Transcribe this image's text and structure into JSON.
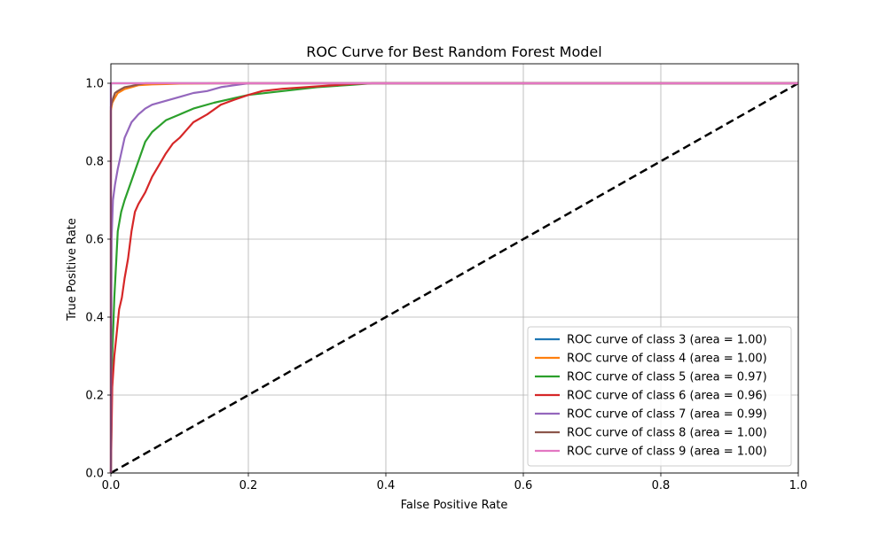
{
  "chart_data": {
    "type": "line",
    "title": "ROC Curve for Best Random Forest Model",
    "xlabel": "False Positive Rate",
    "ylabel": "True Positive Rate",
    "xlim": [
      0,
      1
    ],
    "ylim": [
      0,
      1.05
    ],
    "xticks": [
      "0.0",
      "0.2",
      "0.4",
      "0.6",
      "0.8",
      "1.0"
    ],
    "yticks": [
      "0.0",
      "0.2",
      "0.4",
      "0.6",
      "0.8",
      "1.0"
    ],
    "grid": true,
    "legend_position": "lower-right",
    "diagonal": {
      "x": [
        0,
        1
      ],
      "y": [
        0,
        1
      ],
      "color": "#000000",
      "style": "dashed"
    },
    "series": [
      {
        "name": "ROC curve of class 3 (area = 1.00)",
        "color": "#1f77b4",
        "x": [
          0,
          0,
          1
        ],
        "y": [
          0,
          1.0,
          1.0
        ]
      },
      {
        "name": "ROC curve of class 4 (area = 1.00)",
        "color": "#ff7f0e",
        "x": [
          0,
          0,
          0.002,
          0.005,
          0.01,
          0.02,
          0.03,
          0.04,
          0.06,
          0.08,
          0.1,
          0.15,
          0.2,
          1
        ],
        "y": [
          0,
          0.93,
          0.95,
          0.96,
          0.975,
          0.985,
          0.99,
          0.995,
          0.997,
          0.998,
          0.999,
          1.0,
          1.0,
          1.0
        ]
      },
      {
        "name": "ROC curve of class 5 (area = 0.97)",
        "color": "#2ca02c",
        "x": [
          0,
          0.002,
          0.005,
          0.008,
          0.01,
          0.015,
          0.02,
          0.03,
          0.04,
          0.05,
          0.06,
          0.07,
          0.08,
          0.1,
          0.12,
          0.15,
          0.18,
          0.2,
          0.25,
          0.3,
          0.35,
          0.38,
          1
        ],
        "y": [
          0,
          0.3,
          0.45,
          0.55,
          0.62,
          0.67,
          0.7,
          0.75,
          0.8,
          0.85,
          0.875,
          0.89,
          0.905,
          0.92,
          0.935,
          0.95,
          0.962,
          0.97,
          0.98,
          0.99,
          0.996,
          1.0,
          1.0
        ]
      },
      {
        "name": "ROC curve of class 6 (area = 0.96)",
        "color": "#d62728",
        "x": [
          0,
          0.002,
          0.005,
          0.008,
          0.012,
          0.016,
          0.02,
          0.025,
          0.03,
          0.035,
          0.04,
          0.05,
          0.06,
          0.07,
          0.08,
          0.09,
          0.1,
          0.11,
          0.12,
          0.14,
          0.16,
          0.18,
          0.2,
          0.22,
          0.25,
          0.3,
          0.35,
          0.38,
          1
        ],
        "y": [
          0,
          0.22,
          0.3,
          0.35,
          0.42,
          0.45,
          0.5,
          0.55,
          0.62,
          0.67,
          0.69,
          0.72,
          0.76,
          0.79,
          0.82,
          0.845,
          0.86,
          0.88,
          0.9,
          0.92,
          0.945,
          0.958,
          0.97,
          0.98,
          0.986,
          0.992,
          0.998,
          1.0,
          1.0
        ]
      },
      {
        "name": "ROC curve of class 7 (area = 0.99)",
        "color": "#9467bd",
        "x": [
          0,
          0.001,
          0.003,
          0.006,
          0.01,
          0.015,
          0.02,
          0.025,
          0.03,
          0.04,
          0.05,
          0.06,
          0.08,
          0.1,
          0.12,
          0.14,
          0.16,
          0.18,
          0.2,
          0.25,
          1
        ],
        "y": [
          0,
          0.6,
          0.7,
          0.74,
          0.78,
          0.82,
          0.86,
          0.88,
          0.9,
          0.92,
          0.935,
          0.945,
          0.955,
          0.965,
          0.975,
          0.98,
          0.99,
          0.995,
          1.0,
          1.0,
          1.0
        ]
      },
      {
        "name": "ROC curve of class 8 (area = 1.00)",
        "color": "#8c564b",
        "x": [
          0,
          0,
          0.003,
          0.006,
          0.01,
          0.015,
          0.02,
          0.03,
          0.04,
          0.05,
          0.1,
          1
        ],
        "y": [
          0,
          0.94,
          0.96,
          0.975,
          0.98,
          0.985,
          0.99,
          0.993,
          0.997,
          1.0,
          1.0,
          1.0
        ]
      },
      {
        "name": "ROC curve of class 9 (area = 1.00)",
        "color": "#e377c2",
        "x": [
          0,
          0,
          1
        ],
        "y": [
          0,
          1.0,
          1.0
        ]
      }
    ]
  }
}
